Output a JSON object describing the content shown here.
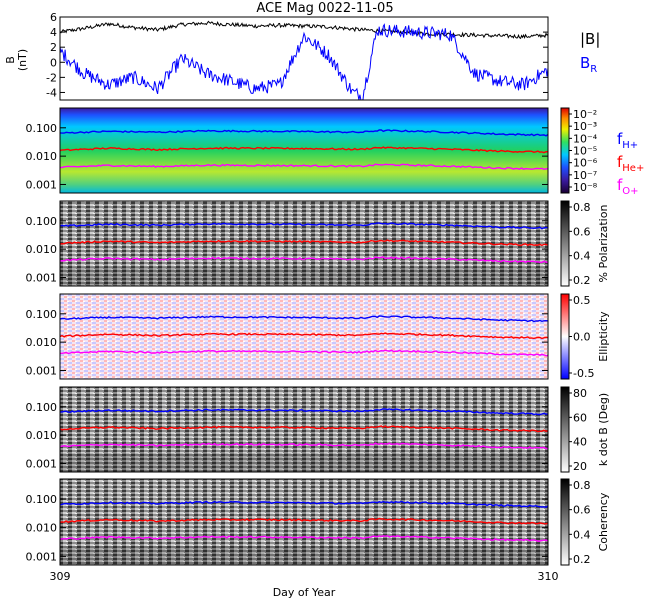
{
  "chart_data": {
    "type": "line",
    "title": "ACE Mag 0022-11-05",
    "xlabel": "Day of Year",
    "x_ticks": [
      "309",
      "310"
    ],
    "xlim": [
      309,
      310
    ],
    "panels": [
      {
        "id": "field",
        "ylabel": "B (nT)",
        "ylim": [
          -5,
          6
        ],
        "y_ticks": [
          "6",
          "4",
          "2",
          "0",
          "-2",
          "-4"
        ],
        "series": [
          {
            "name": "|B|",
            "color": "#000000",
            "x": [
              309.0,
              309.05,
              309.1,
              309.15,
              309.2,
              309.25,
              309.3,
              309.35,
              309.4,
              309.45,
              309.5,
              309.55,
              309.6,
              309.62,
              309.7,
              309.75,
              309.8,
              309.85,
              309.9,
              309.95,
              310.0
            ],
            "y": [
              4.0,
              4.5,
              5.1,
              4.6,
              4.3,
              5.0,
              5.2,
              5.0,
              4.8,
              4.9,
              4.8,
              4.7,
              4.4,
              4.3,
              4.0,
              3.8,
              3.7,
              3.6,
              3.5,
              3.4,
              3.6
            ]
          },
          {
            "name": "B_R",
            "color": "#0000ff",
            "x": [
              309.0,
              309.05,
              309.1,
              309.15,
              309.2,
              309.25,
              309.3,
              309.35,
              309.4,
              309.45,
              309.5,
              309.55,
              309.6,
              309.62,
              309.65,
              309.7,
              309.75,
              309.8,
              309.85,
              309.9,
              309.95,
              310.0
            ],
            "y": [
              1.5,
              -1.5,
              -3.0,
              -2.0,
              -3.5,
              0.5,
              -1.5,
              -2.5,
              -3.5,
              -3.0,
              3.5,
              1.0,
              -4.0,
              -4.5,
              4.3,
              4.1,
              3.9,
              3.7,
              -1.5,
              -2.5,
              -3.0,
              -1.0
            ]
          }
        ]
      },
      {
        "id": "power",
        "colorbar_label": "",
        "colorbar_ticks": [
          "10⁻²",
          "10⁻³",
          "10⁻⁴",
          "10⁻⁵",
          "10⁻⁶",
          "10⁻⁷",
          "10⁻⁸"
        ],
        "ylim": [
          0.0005,
          0.5
        ],
        "y_ticks": [
          "0.100",
          "0.010",
          "0.001"
        ]
      },
      {
        "id": "polarization",
        "colorbar_label": "% Polarization",
        "colorbar_ticks": [
          "0.8",
          "0.6",
          "0.4",
          "0.2"
        ],
        "ylim": [
          0.0005,
          0.5
        ],
        "y_ticks": [
          "0.100",
          "0.010",
          "0.001"
        ]
      },
      {
        "id": "ellipticity",
        "colorbar_label": "Ellipticity",
        "colorbar_ticks": [
          "0.5",
          "0.0",
          "-0.5"
        ],
        "ylim": [
          0.0005,
          0.5
        ],
        "y_ticks": [
          "0.100",
          "0.010",
          "0.001"
        ]
      },
      {
        "id": "kdotb",
        "colorbar_label": "k dot B (Deg)",
        "colorbar_ticks": [
          "80",
          "60",
          "40",
          "20"
        ],
        "ylim": [
          0.0005,
          0.5
        ],
        "y_ticks": [
          "0.100",
          "0.010",
          "0.001"
        ]
      },
      {
        "id": "coherency",
        "colorbar_label": "Coherency",
        "colorbar_ticks": [
          "0.8",
          "0.6",
          "0.4",
          "0.2"
        ],
        "ylim": [
          0.0005,
          0.5
        ],
        "y_ticks": [
          "0.100",
          "0.010",
          "0.001"
        ]
      }
    ],
    "gyro_series": [
      {
        "name": "fH+",
        "color": "#0000ff",
        "x": [
          309.0,
          309.1,
          309.2,
          309.3,
          309.4,
          309.5,
          309.6,
          309.62,
          309.65,
          309.7,
          309.8,
          309.9,
          310.0
        ],
        "y": [
          0.065,
          0.075,
          0.07,
          0.078,
          0.076,
          0.074,
          0.07,
          0.07,
          0.08,
          0.078,
          0.07,
          0.06,
          0.055
        ]
      },
      {
        "name": "fHe+",
        "color": "#ff0000",
        "x": [
          309.0,
          309.1,
          309.2,
          309.3,
          309.4,
          309.5,
          309.6,
          309.62,
          309.65,
          309.7,
          309.8,
          309.9,
          310.0
        ],
        "y": [
          0.016,
          0.019,
          0.017,
          0.019,
          0.019,
          0.0185,
          0.0175,
          0.0175,
          0.02,
          0.0195,
          0.0175,
          0.015,
          0.014
        ]
      },
      {
        "name": "fO+",
        "color": "#ff00ff",
        "x": [
          309.0,
          309.1,
          309.2,
          309.3,
          309.4,
          309.5,
          309.6,
          309.62,
          309.65,
          309.7,
          309.8,
          309.9,
          310.0
        ],
        "y": [
          0.004,
          0.0047,
          0.0043,
          0.0048,
          0.0047,
          0.0046,
          0.0044,
          0.0044,
          0.005,
          0.0049,
          0.0044,
          0.0038,
          0.0035
        ]
      }
    ],
    "legend_field": [
      {
        "text": "|B|",
        "color": "#000000"
      },
      {
        "text": "B",
        "sub": "R",
        "color": "#0000ff"
      }
    ],
    "legend_gyro": [
      {
        "text": "f",
        "sub": "H+",
        "color": "#0000ff"
      },
      {
        "text": "f",
        "sub": "He+",
        "color": "#ff0000"
      },
      {
        "text": "f",
        "sub": "O+",
        "color": "#ff00ff"
      }
    ]
  }
}
